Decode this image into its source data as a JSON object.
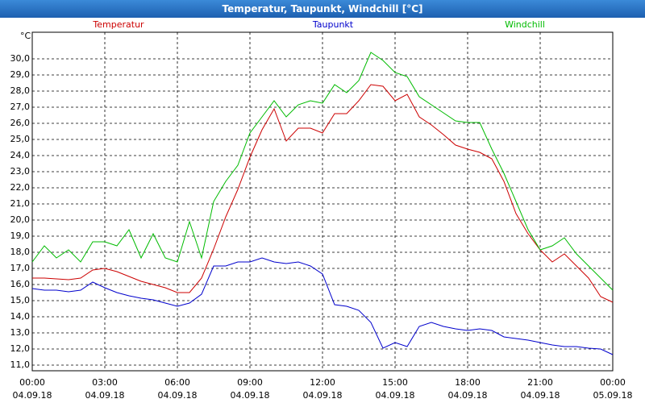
{
  "chart_data": {
    "type": "line",
    "title": "Temperatur, Taupunkt, Windchill [°C]",
    "y_unit": "°C",
    "x": [
      0,
      0.5,
      1,
      1.5,
      2,
      2.5,
      3,
      3.5,
      4,
      4.5,
      5,
      5.5,
      6,
      6.5,
      7,
      7.5,
      8,
      8.5,
      9,
      9.5,
      10,
      10.5,
      11,
      11.5,
      12,
      12.5,
      13,
      13.5,
      14,
      14.5,
      15,
      15.5,
      16,
      16.5,
      17,
      17.5,
      18,
      18.5,
      19,
      19.5,
      20,
      20.5,
      21,
      21.5,
      22,
      22.5,
      23,
      23.5,
      24
    ],
    "series": [
      {
        "name": "Temperatur",
        "color": "#cc0000",
        "values": [
          16.4,
          16.4,
          16.35,
          16.3,
          16.4,
          16.9,
          17.0,
          16.8,
          16.5,
          16.2,
          16.0,
          15.8,
          15.5,
          15.5,
          16.4,
          18.2,
          20.2,
          21.9,
          23.9,
          25.6,
          26.9,
          24.9,
          25.7,
          25.7,
          25.4,
          26.6,
          26.6,
          27.4,
          28.4,
          28.3,
          27.4,
          27.8,
          26.4,
          25.9,
          25.3,
          24.65,
          24.4,
          24.2,
          23.8,
          22.4,
          20.4,
          19.15,
          18.15,
          17.4,
          17.9,
          17.15,
          16.4,
          15.25,
          14.9
        ]
      },
      {
        "name": "Taupunkt",
        "color": "#0000cc",
        "values": [
          15.75,
          15.65,
          15.65,
          15.55,
          15.65,
          16.15,
          15.8,
          15.5,
          15.3,
          15.15,
          15.05,
          14.85,
          14.65,
          14.85,
          15.4,
          17.15,
          17.15,
          17.4,
          17.4,
          17.65,
          17.4,
          17.3,
          17.4,
          17.15,
          16.65,
          14.75,
          14.65,
          14.4,
          13.65,
          12.05,
          12.4,
          12.15,
          13.4,
          13.65,
          13.4,
          13.25,
          13.15,
          13.25,
          13.15,
          12.75,
          12.65,
          12.55,
          12.4,
          12.25,
          12.15,
          12.15,
          12.05,
          12.0,
          11.65
        ]
      },
      {
        "name": "Windchill",
        "color": "#00bb00",
        "values": [
          17.4,
          18.4,
          17.65,
          18.15,
          17.4,
          18.65,
          18.65,
          18.4,
          19.4,
          17.65,
          19.15,
          17.65,
          17.4,
          19.9,
          17.65,
          21.15,
          22.4,
          23.4,
          25.4,
          26.4,
          27.4,
          26.4,
          27.15,
          27.4,
          27.25,
          28.4,
          27.9,
          28.65,
          30.4,
          29.9,
          29.15,
          28.9,
          27.65,
          27.15,
          26.65,
          26.15,
          26.05,
          26.05,
          24.4,
          22.9,
          21.15,
          19.4,
          18.15,
          18.4,
          18.9,
          17.9,
          17.15,
          16.4,
          15.65
        ]
      }
    ],
    "xlim": [
      0,
      24
    ],
    "xticks": [
      {
        "value": 0,
        "label": "00:00"
      },
      {
        "value": 3,
        "label": "03:00"
      },
      {
        "value": 6,
        "label": "06:00"
      },
      {
        "value": 9,
        "label": "09:00"
      },
      {
        "value": 12,
        "label": "12:00"
      },
      {
        "value": 15,
        "label": "15:00"
      },
      {
        "value": 18,
        "label": "18:00"
      },
      {
        "value": 21,
        "label": "21:00"
      },
      {
        "value": 24,
        "label": "00:00"
      }
    ],
    "xtick_dates": [
      "04.09.18",
      "04.09.18",
      "04.09.18",
      "04.09.18",
      "04.09.18",
      "04.09.18",
      "04.09.18",
      "04.09.18",
      "05.09.18"
    ],
    "ylim": [
      10.65,
      31.65
    ],
    "yticks": [
      {
        "value": 11,
        "label": "11,0"
      },
      {
        "value": 12,
        "label": "12,0"
      },
      {
        "value": 13,
        "label": "13,0"
      },
      {
        "value": 14,
        "label": "14,0"
      },
      {
        "value": 15,
        "label": "15,0"
      },
      {
        "value": 16,
        "label": "16,0"
      },
      {
        "value": 17,
        "label": "17,0"
      },
      {
        "value": 18,
        "label": "18,0"
      },
      {
        "value": 19,
        "label": "19,0"
      },
      {
        "value": 20,
        "label": "20,0"
      },
      {
        "value": 21,
        "label": "21,0"
      },
      {
        "value": 22,
        "label": "22,0"
      },
      {
        "value": 23,
        "label": "23,0"
      },
      {
        "value": 24,
        "label": "24,0"
      },
      {
        "value": 25,
        "label": "25,0"
      },
      {
        "value": 26,
        "label": "26,0"
      },
      {
        "value": 27,
        "label": "27,0"
      },
      {
        "value": 28,
        "label": "28,0"
      },
      {
        "value": 29,
        "label": "29,0"
      },
      {
        "value": 30,
        "label": "30,0"
      }
    ],
    "grid": true
  }
}
